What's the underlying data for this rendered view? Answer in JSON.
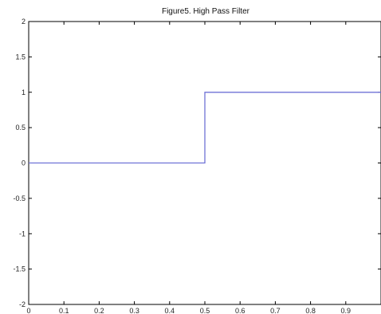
{
  "chart_data": {
    "type": "line",
    "title": "Figure5. High Pass Filter",
    "xlabel": "",
    "ylabel": "",
    "xlim": [
      0,
      1
    ],
    "ylim": [
      -2,
      2
    ],
    "x_ticks": [
      "0",
      "0.1",
      "0.2",
      "0.3",
      "0.4",
      "0.5",
      "0.6",
      "0.7",
      "0.8",
      "0.9"
    ],
    "y_ticks": [
      "2",
      "1.5",
      "1",
      "0.5",
      "0",
      "-0.5",
      "-1",
      "-1.5",
      "-2"
    ],
    "grid": false,
    "series": [
      {
        "x": [
          0,
          0.5,
          0.5,
          1
        ],
        "y": [
          0,
          0,
          1,
          1
        ]
      }
    ],
    "colors": {
      "line": "#6f72d6",
      "axes": "#000000"
    }
  }
}
